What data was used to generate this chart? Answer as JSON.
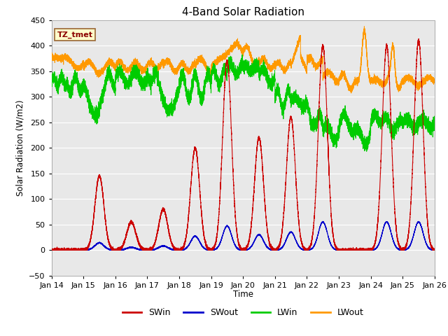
{
  "title": "4-Band Solar Radiation",
  "ylabel": "Solar Radiation (W/m2)",
  "xlabel": "Time",
  "xlim_start": 0,
  "xlim_end": 12,
  "ylim": [
    -50,
    450
  ],
  "yticks": [
    -50,
    0,
    50,
    100,
    150,
    200,
    250,
    300,
    350,
    400,
    450
  ],
  "xtick_labels": [
    "Jan 14",
    "Jan 15",
    "Jan 16",
    "Jan 17",
    "Jan 18",
    "Jan 19",
    "Jan 20",
    "Jan 21",
    "Jan 22",
    "Jan 23",
    "Jan 24",
    "Jan 25",
    "Jan 26"
  ],
  "xtick_positions": [
    0,
    1,
    2,
    3,
    4,
    5,
    6,
    7,
    8,
    9,
    10,
    11,
    12
  ],
  "colors": {
    "SWin": "#cc0000",
    "SWout": "#0000cc",
    "LWin": "#00cc00",
    "LWout": "#ff9900"
  },
  "annotation_text": "TZ_tmet",
  "annotation_color": "#8b0000",
  "annotation_bg": "#ffffcc",
  "annotation_border": "#996633",
  "fig_facecolor": "#ffffff",
  "plot_facecolor": "#e8e8e8"
}
